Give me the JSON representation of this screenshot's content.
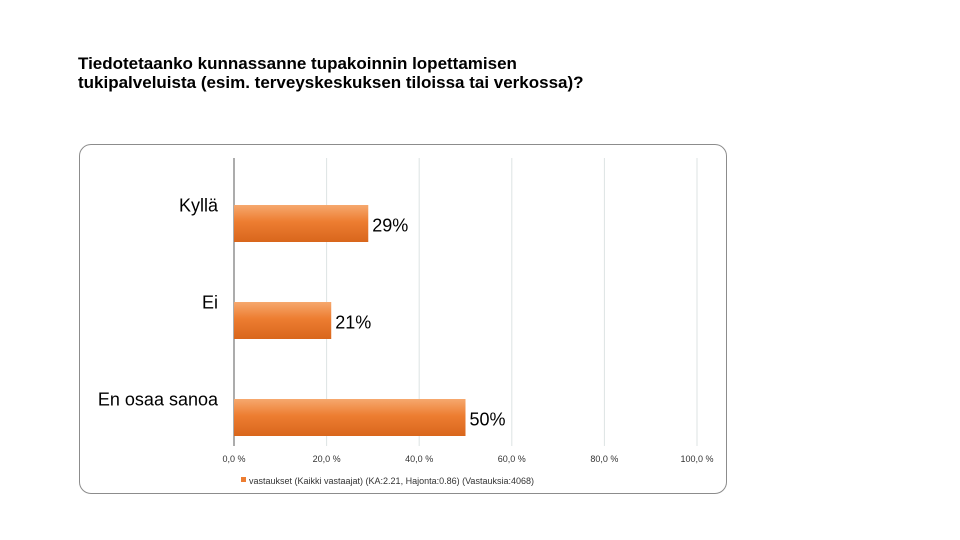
{
  "chart_data": {
    "type": "bar",
    "orientation": "horizontal",
    "title_lines": [
      "Tiedotetaanko kunnassanne tupakoinnin lopettamisen",
      "tukipalveluista (esim. terveyskeskuksen tiloissa tai verkossa)?"
    ],
    "categories": [
      "Kyllä",
      "Ei",
      "En osaa sanoa"
    ],
    "series": [
      {
        "name": "vastaukset (Kaikki vastaajat) (KA:2.21, Hajonta:0.86) (Vastauksia:4068)",
        "values": [
          29,
          21,
          50
        ],
        "value_labels": [
          "29%",
          "21%",
          "50%"
        ],
        "color": "#ED7D31"
      }
    ],
    "xlim": [
      0,
      100
    ],
    "x_ticks": [
      0,
      20,
      40,
      60,
      80,
      100
    ],
    "x_tick_labels": [
      "0,0 %",
      "20,0 %",
      "40,0 %",
      "60,0 %",
      "80,0 %",
      "100,0 %"
    ],
    "grid": true,
    "legend_position": "bottom"
  }
}
